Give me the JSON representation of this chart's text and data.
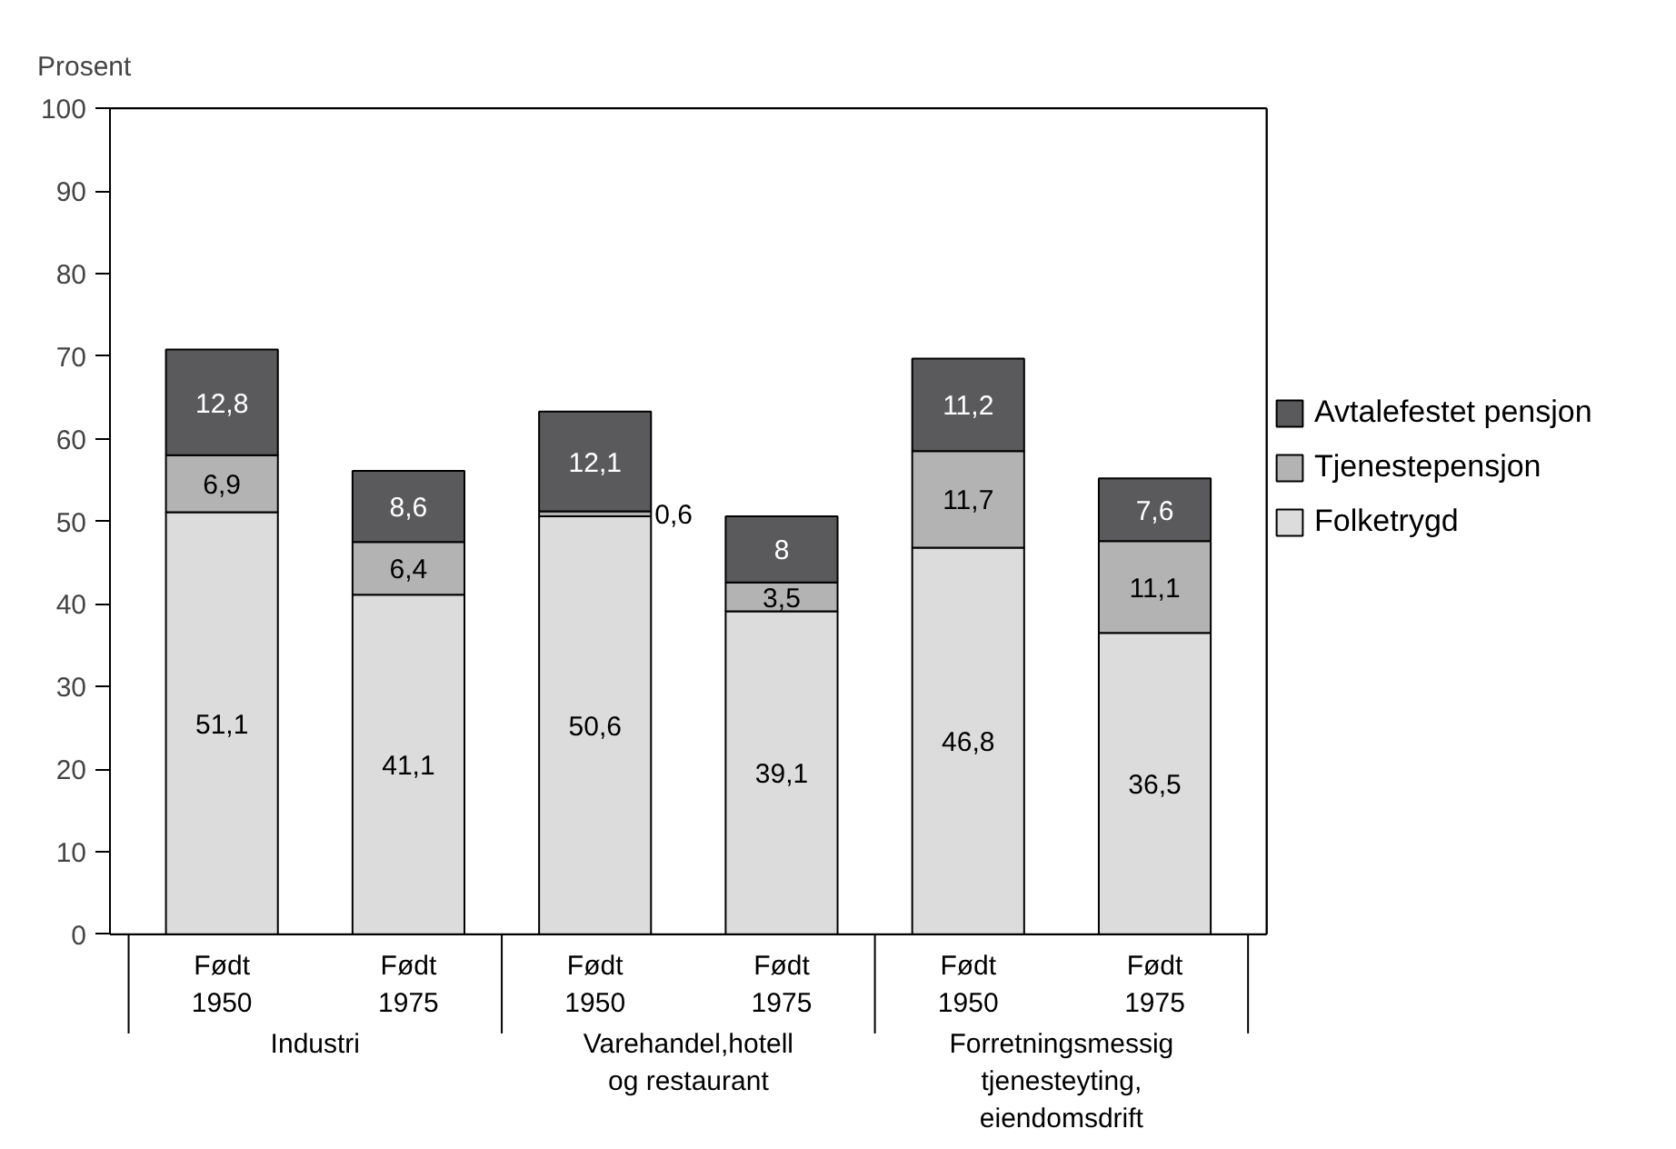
{
  "chart_data": {
    "type": "bar",
    "stacked": true,
    "ylabel": "Prosent",
    "categories": [
      "Født 1950",
      "Født 1975",
      "Født 1950",
      "Født 1975",
      "Født 1950",
      "Født 1975"
    ],
    "series": [
      {
        "name": "Folketrygd",
        "color": "#dcdcdc",
        "values": [
          51.1,
          41.1,
          50.6,
          39.1,
          46.8,
          36.5
        ],
        "value_labels": [
          "51,1",
          "41,1",
          "50,6",
          "39,1",
          "46,8",
          "36,5"
        ]
      },
      {
        "name": "Tjenestepensjon",
        "color": "#b3b3b3",
        "values": [
          6.9,
          6.4,
          0.6,
          3.5,
          11.7,
          11.1
        ],
        "value_labels": [
          "6,9",
          "6,4",
          "0,6",
          "3,5",
          "11,7",
          "11,1"
        ]
      },
      {
        "name": "Avtalefestet pensjon",
        "color": "#5a5a5c",
        "values": [
          12.8,
          8.6,
          12.1,
          8,
          11.2,
          7.6
        ],
        "value_labels": [
          "12,8",
          "8,6",
          "12,1",
          "8",
          "11,2",
          "7,6"
        ]
      }
    ],
    "annotations": [
      "Industri",
      "Varehandel,hotell og restaurant",
      "Forretningsmessig tjenesteyting, eiendomsdrift"
    ],
    "ylim": [
      0,
      100
    ],
    "yticks": [
      0,
      10,
      20,
      30,
      40,
      50,
      60,
      70,
      80,
      90,
      100
    ],
    "grid": false,
    "legend": "right"
  }
}
